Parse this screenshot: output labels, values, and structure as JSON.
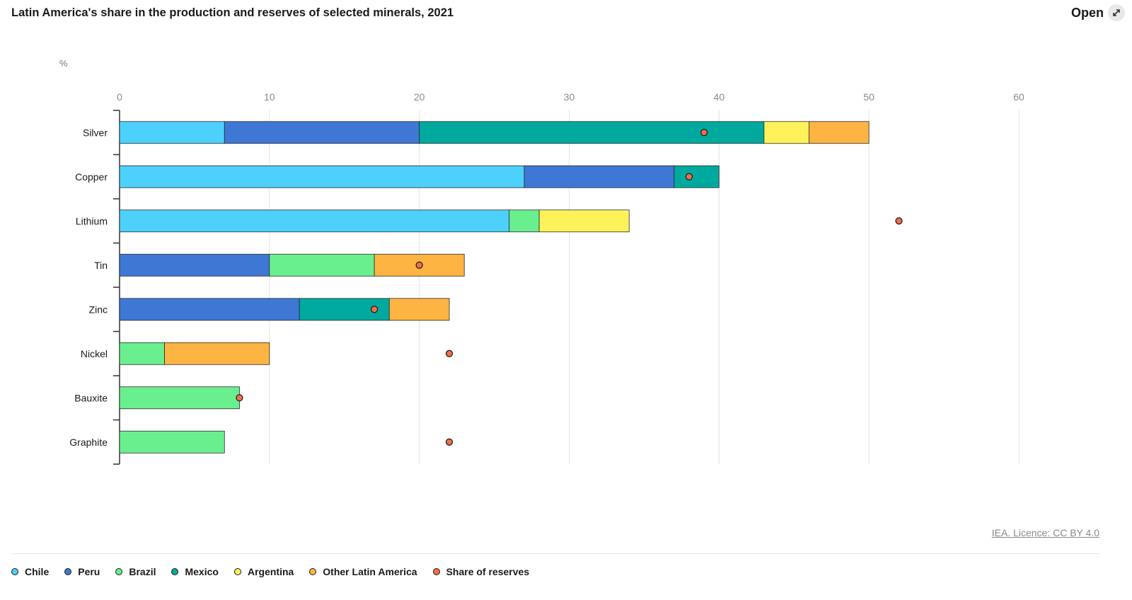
{
  "header": {
    "title": "Latin America's share in the production and reserves of selected minerals, 2021",
    "open_label": "Open"
  },
  "footer": {
    "license": "IEA. Licence: CC BY 4.0"
  },
  "chart_data": {
    "type": "bar",
    "orientation": "horizontal",
    "stacked": true,
    "title": "Latin America's share in the production and reserves of selected minerals, 2021",
    "unit_label": "%",
    "xlim": [
      0,
      60
    ],
    "xticks": [
      0,
      10,
      20,
      30,
      40,
      50,
      60
    ],
    "grid": true,
    "legend_position": "bottom",
    "categories": [
      "Silver",
      "Copper",
      "Lithium",
      "Tin",
      "Zinc",
      "Nickel",
      "Bauxite",
      "Graphite"
    ],
    "series": [
      {
        "name": "Chile",
        "color": "#4dd0fb",
        "values": [
          7,
          27,
          26,
          0,
          0,
          0,
          0,
          0
        ]
      },
      {
        "name": "Peru",
        "color": "#3f78d4",
        "values": [
          13,
          10,
          0,
          10,
          12,
          0,
          0,
          0
        ]
      },
      {
        "name": "Brazil",
        "color": "#6aef8f",
        "values": [
          0,
          0,
          2,
          7,
          0,
          3,
          8,
          7
        ]
      },
      {
        "name": "Mexico",
        "color": "#00a99d",
        "values": [
          23,
          3,
          0,
          0,
          6,
          0,
          0,
          0
        ]
      },
      {
        "name": "Argentina",
        "color": "#fef25a",
        "values": [
          3,
          0,
          6,
          0,
          0,
          0,
          0,
          0
        ]
      },
      {
        "name": "Other Latin America",
        "color": "#fdb443",
        "values": [
          4,
          0,
          0,
          6,
          4,
          7,
          0,
          0
        ]
      }
    ],
    "markers": {
      "name": "Share of reserves",
      "color": "#f36e4a",
      "values": [
        39,
        38,
        52,
        20,
        17,
        22,
        8,
        22
      ]
    }
  }
}
